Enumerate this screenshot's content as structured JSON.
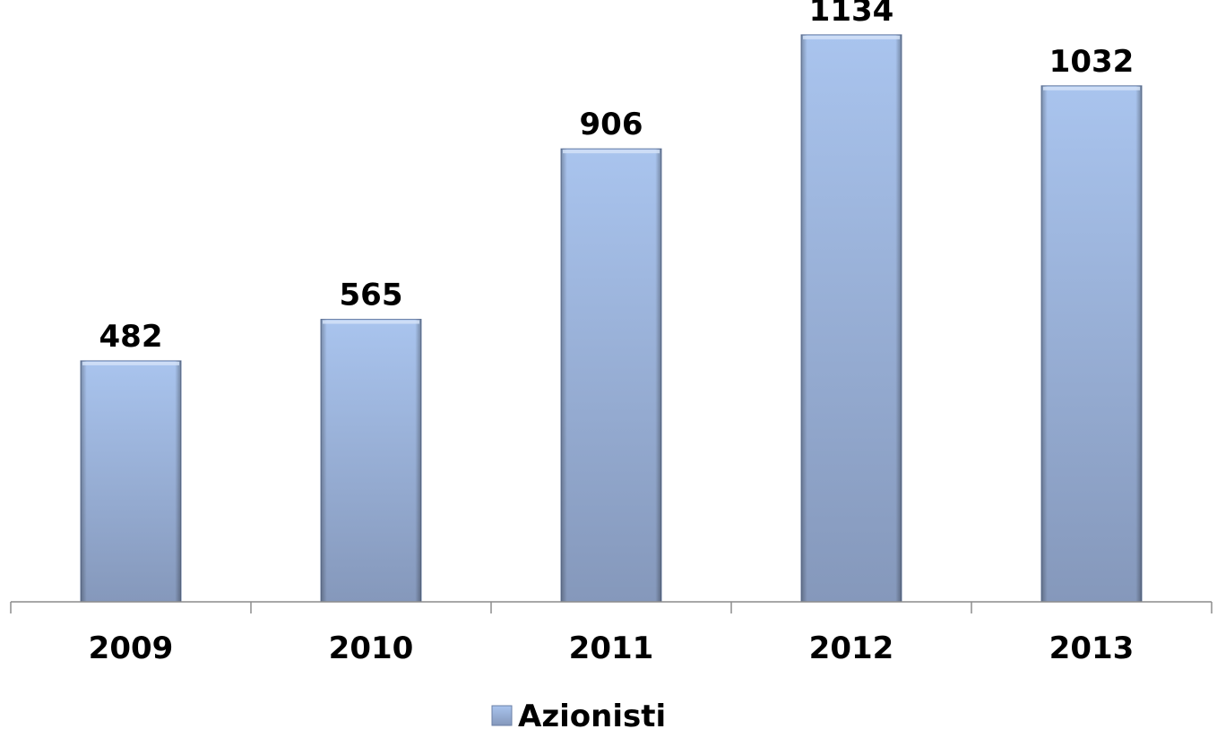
{
  "chart_data": {
    "type": "bar",
    "categories": [
      "2009",
      "2010",
      "2011",
      "2012",
      "2013"
    ],
    "series": [
      {
        "name": "Azionisti",
        "values": [
          482,
          565,
          906,
          1134,
          1032
        ]
      }
    ],
    "data_labels": [
      "482",
      "565",
      "906",
      "1134",
      "1032"
    ],
    "title": "",
    "xlabel": "",
    "ylabel": "",
    "ylim": [
      0,
      1200
    ],
    "grid": false,
    "legend": {
      "position": "bottom",
      "entries": [
        "Azionisti"
      ]
    },
    "colors": {
      "bar_top": "#a9c4ee",
      "bar_bottom": "#8598bb",
      "bar_edge": "#6a7fa6",
      "axis": "#8c8c8c"
    }
  }
}
